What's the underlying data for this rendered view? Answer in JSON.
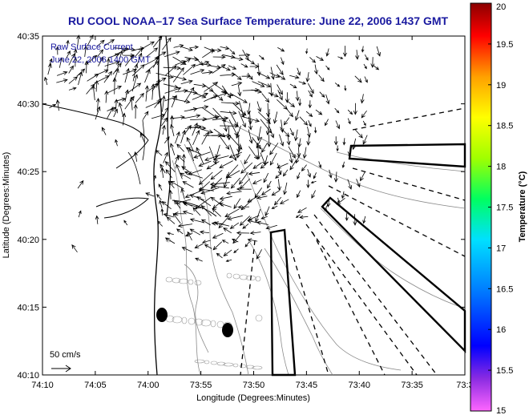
{
  "title": "RU COOL  NOAA–17  Sea Surface Temperature:  June 22, 2006 1437 GMT",
  "legend": {
    "line1": "Raw Surface Current",
    "line2": "June 22, 2006 1400 GMT"
  },
  "scale_label": "50 cm/s",
  "x_axis": {
    "label": "Longitude (Degrees:Minutes)",
    "ticks": [
      "74:10",
      "74:05",
      "74:00",
      "73:55",
      "73:50",
      "73:45",
      "73:40",
      "73:35",
      "73:3"
    ]
  },
  "y_axis": {
    "label": "Latitude (Degrees:Minutes)",
    "ticks": [
      "40:35",
      "40:30",
      "40:25",
      "40:20",
      "40:15",
      "40:10"
    ]
  },
  "colorbar": {
    "label": "Temperature (°C)",
    "ticks": [
      "20",
      "19.5",
      "19",
      "18.5",
      "18",
      "17.5",
      "17",
      "16.5",
      "16",
      "15.5",
      "15"
    ],
    "min": 15,
    "max": 20
  }
}
